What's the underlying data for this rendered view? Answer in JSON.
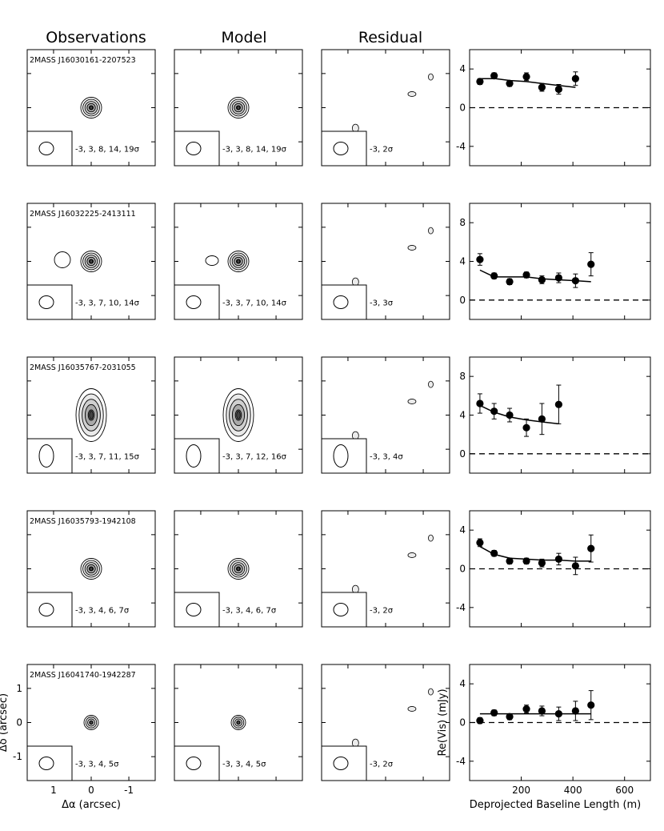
{
  "column_titles": [
    "Observations",
    "Model",
    "Residual"
  ],
  "rows": [
    {
      "source": "2MASS J16030161-2207523",
      "obs_contours": "-3, 3, 8, 14, 19σ",
      "model_contours": "-3, 3, 8, 14, 19σ",
      "resid_contours": "-3, 2σ",
      "beam": "round",
      "source_shape": "compact"
    },
    {
      "source": "2MASS J16032225-2413111",
      "obs_contours": "-3, 3, 7, 10, 14σ",
      "model_contours": "-3, 3, 7, 10, 14σ",
      "resid_contours": "-3, 3σ",
      "beam": "round",
      "source_shape": "double"
    },
    {
      "source": "2MASS J16035767-2031055",
      "obs_contours": "-3, 3, 7, 11, 15σ",
      "model_contours": "-3, 3, 7, 12, 16σ",
      "resid_contours": "-3, 3, 4σ",
      "beam": "elongated",
      "source_shape": "elongated"
    },
    {
      "source": "2MASS J16035793-1942108",
      "obs_contours": "-3, 3, 4, 6, 7σ",
      "model_contours": "-3, 3, 4, 6, 7σ",
      "resid_contours": "-3, 2σ",
      "beam": "round",
      "source_shape": "compact"
    },
    {
      "source": "2MASS J16041740-1942287",
      "obs_contours": "-3, 3, 4, 5σ",
      "model_contours": "-3, 3, 4, 5σ",
      "resid_contours": "-3, 2σ",
      "beam": "round",
      "source_shape": "small"
    }
  ],
  "image_axes": {
    "xlabel": "Δα (arcsec)",
    "ylabel": "Δδ (arcsec)",
    "xticks": [
      "1",
      "0",
      "-1"
    ],
    "yticks": [
      "1",
      "0",
      "-1"
    ]
  },
  "chart_data": {
    "type": "scatter",
    "xlabel": "Deprojected Baseline Length (m)",
    "ylabel": "Re(Vis) (mJy)",
    "xlim": [
      0,
      700
    ],
    "xticks": [
      200,
      400,
      600
    ],
    "xtick_labels": [
      "200",
      "400",
      "600"
    ],
    "panels": [
      {
        "ylim": [
          -6,
          6
        ],
        "yticks": [
          -4,
          0,
          4
        ],
        "ytick_labels": [
          "-4",
          "0",
          "4"
        ],
        "points": [
          [
            40,
            2.7
          ],
          [
            95,
            3.3
          ],
          [
            155,
            2.5
          ],
          [
            220,
            3.2
          ],
          [
            280,
            2.1
          ],
          [
            345,
            1.9
          ],
          [
            410,
            3.0
          ]
        ],
        "errors": [
          0.3,
          0.3,
          0.3,
          0.4,
          0.4,
          0.5,
          0.7
        ],
        "model": [
          [
            40,
            3.0
          ],
          [
            100,
            3.0
          ],
          [
            160,
            2.8
          ],
          [
            220,
            2.7
          ],
          [
            280,
            2.5
          ],
          [
            345,
            2.3
          ],
          [
            410,
            2.1
          ]
        ]
      },
      {
        "ylim": [
          -2,
          10
        ],
        "yticks": [
          0,
          4,
          8
        ],
        "ytick_labels": [
          "0",
          "4",
          "8"
        ],
        "points": [
          [
            40,
            4.2
          ],
          [
            95,
            2.5
          ],
          [
            155,
            1.9
          ],
          [
            220,
            2.6
          ],
          [
            280,
            2.1
          ],
          [
            345,
            2.3
          ],
          [
            410,
            2.0
          ],
          [
            470,
            3.7
          ]
        ],
        "errors": [
          0.6,
          0.3,
          0.3,
          0.3,
          0.4,
          0.5,
          0.7,
          1.2
        ],
        "model": [
          [
            40,
            3.1
          ],
          [
            95,
            2.4
          ],
          [
            155,
            2.4
          ],
          [
            220,
            2.4
          ],
          [
            280,
            2.2
          ],
          [
            345,
            2.1
          ],
          [
            410,
            2.0
          ],
          [
            470,
            1.9
          ]
        ]
      },
      {
        "ylim": [
          -2,
          10
        ],
        "yticks": [
          0,
          4,
          8
        ],
        "ytick_labels": [
          "0",
          "4",
          "8"
        ],
        "points": [
          [
            40,
            5.2
          ],
          [
            95,
            4.4
          ],
          [
            155,
            4.0
          ],
          [
            220,
            2.7
          ],
          [
            280,
            3.6
          ],
          [
            345,
            5.1
          ]
        ],
        "errors": [
          1.0,
          0.8,
          0.7,
          0.9,
          1.6,
          2.0
        ],
        "model": [
          [
            40,
            5.0
          ],
          [
            95,
            4.3
          ],
          [
            155,
            3.8
          ],
          [
            220,
            3.5
          ],
          [
            280,
            3.3
          ],
          [
            345,
            3.1
          ]
        ]
      },
      {
        "ylim": [
          -6,
          6
        ],
        "yticks": [
          -4,
          0,
          4
        ],
        "ytick_labels": [
          "-4",
          "0",
          "4"
        ],
        "points": [
          [
            40,
            2.7
          ],
          [
            95,
            1.6
          ],
          [
            155,
            0.8
          ],
          [
            220,
            0.8
          ],
          [
            280,
            0.6
          ],
          [
            345,
            1.0
          ],
          [
            410,
            0.3
          ],
          [
            470,
            2.1
          ]
        ],
        "errors": [
          0.4,
          0.3,
          0.3,
          0.3,
          0.4,
          0.6,
          0.9,
          1.4
        ],
        "model": [
          [
            40,
            2.3
          ],
          [
            95,
            1.5
          ],
          [
            155,
            1.1
          ],
          [
            220,
            1.0
          ],
          [
            280,
            0.9
          ],
          [
            345,
            0.9
          ],
          [
            410,
            0.8
          ],
          [
            470,
            0.8
          ]
        ]
      },
      {
        "ylim": [
          -6,
          6
        ],
        "yticks": [
          -4,
          0,
          4
        ],
        "ytick_labels": [
          "-4",
          "0",
          "4"
        ],
        "points": [
          [
            40,
            0.2
          ],
          [
            95,
            1.0
          ],
          [
            155,
            0.6
          ],
          [
            220,
            1.4
          ],
          [
            280,
            1.2
          ],
          [
            345,
            0.9
          ],
          [
            410,
            1.2
          ],
          [
            470,
            1.8
          ]
        ],
        "errors": [
          0.3,
          0.3,
          0.3,
          0.4,
          0.5,
          0.7,
          1.0,
          1.5
        ],
        "model": [
          [
            40,
            0.9
          ],
          [
            95,
            0.9
          ],
          [
            155,
            0.9
          ],
          [
            220,
            0.9
          ],
          [
            280,
            0.9
          ],
          [
            345,
            0.9
          ],
          [
            410,
            0.9
          ],
          [
            470,
            0.9
          ]
        ]
      }
    ]
  }
}
